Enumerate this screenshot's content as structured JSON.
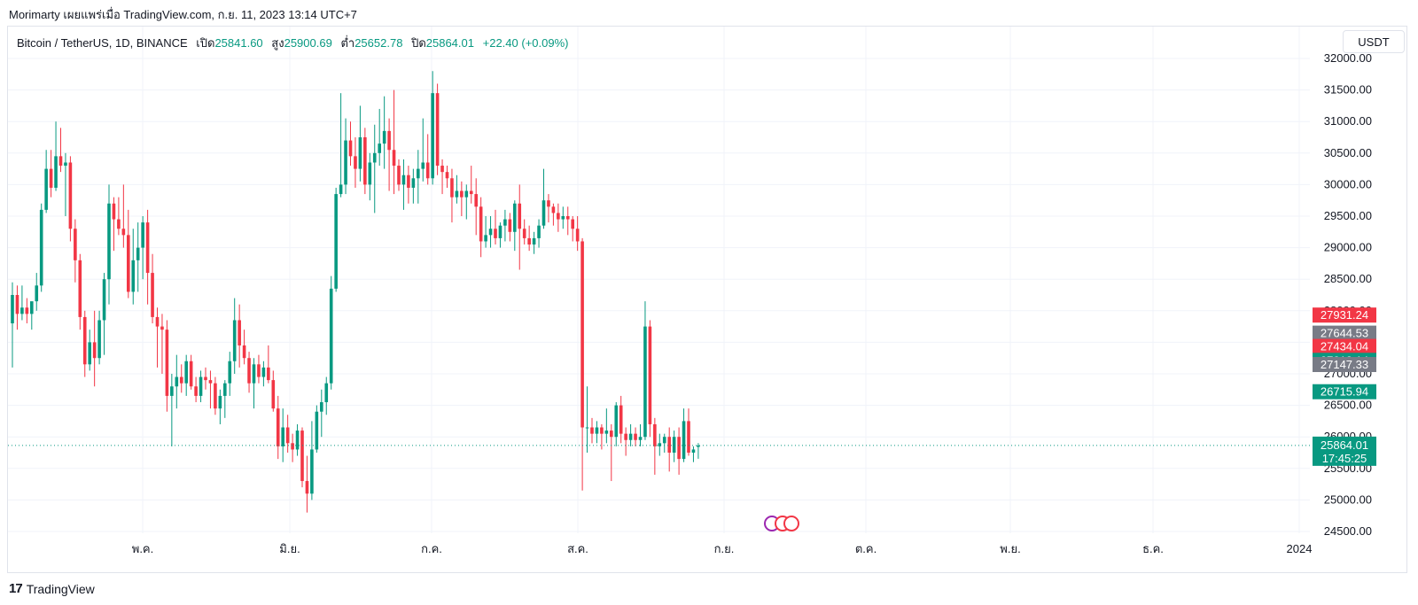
{
  "header": {
    "caption": "Morimarty เผยแพร่เมื่อ TradingView.com, ก.ย. 11, 2023 13:14 UTC+7"
  },
  "legend": {
    "symbol": "Bitcoin / TetherUS, 1D, BINANCE",
    "open_label": "เปิด",
    "open": "25841.60",
    "high_label": "สูง",
    "high": "25900.69",
    "low_label": "ต่ำ",
    "low": "25652.78",
    "close_label": "ปิด",
    "close": "25864.01",
    "change": "+22.40 (+0.09%)"
  },
  "currency_button": "USDT",
  "footer": {
    "brand": "TradingView",
    "logo": "17"
  },
  "colors": {
    "up": "#089981",
    "down": "#f23645",
    "gray": "#787b86",
    "grid": "#f0f3fa"
  },
  "chart_data": {
    "type": "candlestick",
    "ylim": [
      24400,
      32200
    ],
    "y_ticks": [
      "24500.00",
      "25000.00",
      "25500.00",
      "26000.00",
      "26500.00",
      "27000.00",
      "27500.00",
      "28000.00",
      "28500.00",
      "29000.00",
      "29500.00",
      "30000.00",
      "30500.00",
      "31000.00",
      "31500.00",
      "32000.00"
    ],
    "x_ticks": [
      "พ.ค.",
      "มิ.ย.",
      "ก.ค.",
      "ส.ค.",
      "ก.ย.",
      "ต.ค.",
      "พ.ย.",
      "ธ.ค.",
      "2024"
    ],
    "price_labels": [
      {
        "value": 27931.24,
        "text": "27931.24",
        "color": "#f23645"
      },
      {
        "value": 27644.53,
        "text": "27644.53",
        "color": "#787b86"
      },
      {
        "value": 27434.04,
        "text": "27434.04",
        "color": "#f23645"
      },
      {
        "value": 27213.14,
        "text": "27213.14",
        "color": "#089981"
      },
      {
        "value": 27147.33,
        "text": "27147.33",
        "color": "#787b86"
      },
      {
        "value": 26715.94,
        "text": "26715.94",
        "color": "#089981"
      }
    ],
    "last_price": {
      "value": 25864.01,
      "text": "25864.01",
      "countdown": "17:45:25",
      "color": "#089981"
    },
    "candles": [
      [
        27800,
        28450,
        27100,
        28250
      ],
      [
        28250,
        28400,
        27700,
        27950
      ],
      [
        27950,
        28400,
        27850,
        28050
      ],
      [
        28050,
        28200,
        27800,
        27950
      ],
      [
        27950,
        28100,
        27700,
        28150
      ],
      [
        28150,
        28600,
        28000,
        28400
      ],
      [
        28400,
        29700,
        28300,
        29600
      ],
      [
        29600,
        30550,
        29550,
        30250
      ],
      [
        30250,
        30550,
        29800,
        29950
      ],
      [
        29950,
        31000,
        29900,
        30450
      ],
      [
        30450,
        30900,
        30200,
        30300
      ],
      [
        30300,
        30500,
        29500,
        30350
      ],
      [
        30350,
        30450,
        29100,
        29300
      ],
      [
        29300,
        29450,
        28450,
        28800
      ],
      [
        28800,
        28900,
        27700,
        27900
      ],
      [
        27900,
        28000,
        26950,
        27150
      ],
      [
        27150,
        27700,
        27050,
        27500
      ],
      [
        27500,
        28000,
        26800,
        27250
      ],
      [
        27250,
        28000,
        27150,
        27850
      ],
      [
        27850,
        28600,
        27300,
        28500
      ],
      [
        28500,
        30000,
        28100,
        29700
      ],
      [
        29700,
        29800,
        28950,
        29450
      ],
      [
        29450,
        29800,
        29200,
        29300
      ],
      [
        29300,
        30000,
        29000,
        29200
      ],
      [
        29200,
        29600,
        28200,
        28300
      ],
      [
        28300,
        29300,
        28100,
        28800
      ],
      [
        28800,
        29400,
        28300,
        29000
      ],
      [
        29000,
        29500,
        28500,
        29400
      ],
      [
        29400,
        29600,
        28100,
        28600
      ],
      [
        28600,
        28900,
        27800,
        27900
      ],
      [
        27900,
        28050,
        27100,
        27750
      ],
      [
        27750,
        27950,
        27000,
        27700
      ],
      [
        27700,
        27850,
        26400,
        26650
      ],
      [
        26650,
        27000,
        25850,
        26800
      ],
      [
        26800,
        27300,
        26450,
        26950
      ],
      [
        26950,
        27150,
        26700,
        26850
      ],
      [
        26850,
        27300,
        26650,
        27200
      ],
      [
        27200,
        27300,
        26750,
        26800
      ],
      [
        26800,
        26950,
        26550,
        26650
      ],
      [
        26650,
        27050,
        26550,
        26950
      ],
      [
        26950,
        27100,
        26750,
        26900
      ],
      [
        26900,
        27050,
        26450,
        26850
      ],
      [
        26850,
        26950,
        26350,
        26450
      ],
      [
        26450,
        26750,
        26200,
        26650
      ],
      [
        26650,
        26900,
        26300,
        26850
      ],
      [
        26850,
        27350,
        26650,
        27200
      ],
      [
        27200,
        28200,
        27000,
        27850
      ],
      [
        27850,
        28100,
        27100,
        27450
      ],
      [
        27450,
        27700,
        27150,
        27250
      ],
      [
        27250,
        27350,
        26700,
        26850
      ],
      [
        26850,
        27250,
        26450,
        27150
      ],
      [
        27150,
        27300,
        26850,
        26950
      ],
      [
        26950,
        27200,
        26800,
        27100
      ],
      [
        27100,
        27450,
        26850,
        26900
      ],
      [
        26900,
        27050,
        26400,
        26450
      ],
      [
        26450,
        26650,
        25650,
        25850
      ],
      [
        25850,
        26450,
        25600,
        26150
      ],
      [
        26150,
        26350,
        25750,
        25900
      ],
      [
        25900,
        26050,
        25600,
        25800
      ],
      [
        25800,
        26200,
        25700,
        26100
      ],
      [
        26100,
        26150,
        25200,
        25300
      ],
      [
        25300,
        25700,
        24800,
        25100
      ],
      [
        25100,
        26250,
        25000,
        25800
      ],
      [
        25800,
        26500,
        25750,
        26400
      ],
      [
        26400,
        26750,
        26000,
        26550
      ],
      [
        26550,
        26950,
        26350,
        26850
      ],
      [
        26850,
        28550,
        26750,
        28350
      ],
      [
        28350,
        29950,
        28300,
        29850
      ],
      [
        29850,
        31450,
        29800,
        30000
      ],
      [
        30000,
        31050,
        29850,
        30700
      ],
      [
        30700,
        31000,
        30300,
        30450
      ],
      [
        30450,
        30750,
        29950,
        30250
      ],
      [
        30250,
        31250,
        30050,
        30750
      ],
      [
        30750,
        30900,
        29850,
        30000
      ],
      [
        30000,
        30500,
        29750,
        30350
      ],
      [
        30350,
        30950,
        29550,
        30500
      ],
      [
        30500,
        31200,
        30300,
        30650
      ],
      [
        30650,
        31400,
        30250,
        30850
      ],
      [
        30850,
        31050,
        29900,
        30550
      ],
      [
        30550,
        31500,
        29850,
        30300
      ],
      [
        30300,
        30400,
        29900,
        30000
      ],
      [
        30000,
        30400,
        29600,
        30150
      ],
      [
        30150,
        30300,
        29700,
        29950
      ],
      [
        29950,
        30250,
        29700,
        30100
      ],
      [
        30100,
        30550,
        29700,
        30250
      ],
      [
        30250,
        31050,
        30050,
        30350
      ],
      [
        30350,
        30800,
        30000,
        30100
      ],
      [
        30100,
        31800,
        30000,
        31450
      ],
      [
        31450,
        31600,
        30150,
        30300
      ],
      [
        30300,
        30400,
        29850,
        30200
      ],
      [
        30200,
        30300,
        29950,
        30100
      ],
      [
        30100,
        30250,
        29400,
        29800
      ],
      [
        29800,
        30150,
        29700,
        29900
      ],
      [
        29900,
        30050,
        29500,
        29800
      ],
      [
        29800,
        30000,
        29450,
        29900
      ],
      [
        29900,
        30300,
        29700,
        29850
      ],
      [
        29850,
        30100,
        29200,
        29650
      ],
      [
        29650,
        29800,
        28850,
        29100
      ],
      [
        29100,
        29500,
        29000,
        29200
      ],
      [
        29200,
        29500,
        29000,
        29300
      ],
      [
        29300,
        29600,
        29050,
        29150
      ],
      [
        29150,
        29400,
        29000,
        29350
      ],
      [
        29350,
        29600,
        29100,
        29450
      ],
      [
        29450,
        29550,
        29100,
        29250
      ],
      [
        29250,
        29750,
        28950,
        29700
      ],
      [
        29700,
        30000,
        28650,
        29300
      ],
      [
        29300,
        29450,
        29050,
        29150
      ],
      [
        29150,
        29350,
        28950,
        29050
      ],
      [
        29050,
        29250,
        28900,
        29150
      ],
      [
        29150,
        29450,
        29000,
        29350
      ],
      [
        29350,
        30250,
        29300,
        29750
      ],
      [
        29750,
        29850,
        29400,
        29650
      ],
      [
        29650,
        29700,
        29350,
        29550
      ],
      [
        29550,
        29700,
        29250,
        29450
      ],
      [
        29450,
        29650,
        29300,
        29500
      ],
      [
        29500,
        29650,
        29200,
        29450
      ],
      [
        29450,
        29500,
        29100,
        29300
      ],
      [
        29300,
        29500,
        28950,
        29100
      ],
      [
        29100,
        29150,
        25150,
        26150
      ],
      [
        26150,
        26800,
        25750,
        26150
      ],
      [
        26150,
        26300,
        25900,
        26050
      ],
      [
        26050,
        26250,
        25900,
        26150
      ],
      [
        26150,
        26200,
        25800,
        26050
      ],
      [
        26050,
        26450,
        25900,
        26100
      ],
      [
        26100,
        26200,
        25300,
        26000
      ],
      [
        26000,
        26550,
        25850,
        26500
      ],
      [
        26500,
        26650,
        25900,
        26050
      ],
      [
        26050,
        26150,
        25700,
        25950
      ],
      [
        25950,
        26200,
        25850,
        26050
      ],
      [
        26050,
        26150,
        25850,
        25950
      ],
      [
        25950,
        26200,
        25850,
        26000
      ],
      [
        26000,
        28150,
        25950,
        27750
      ],
      [
        27750,
        27850,
        26000,
        26200
      ],
      [
        26200,
        26300,
        25400,
        25850
      ],
      [
        25850,
        26050,
        25700,
        25900
      ],
      [
        25900,
        26050,
        25750,
        26000
      ],
      [
        26000,
        26150,
        25450,
        25750
      ],
      [
        25750,
        26100,
        25600,
        26000
      ],
      [
        26000,
        26150,
        25400,
        25650
      ],
      [
        25650,
        26450,
        25600,
        26250
      ],
      [
        26250,
        26450,
        25700,
        25750
      ],
      [
        25750,
        25850,
        25600,
        25800
      ],
      [
        25841.6,
        25900.69,
        25652.78,
        25864.01
      ]
    ]
  }
}
